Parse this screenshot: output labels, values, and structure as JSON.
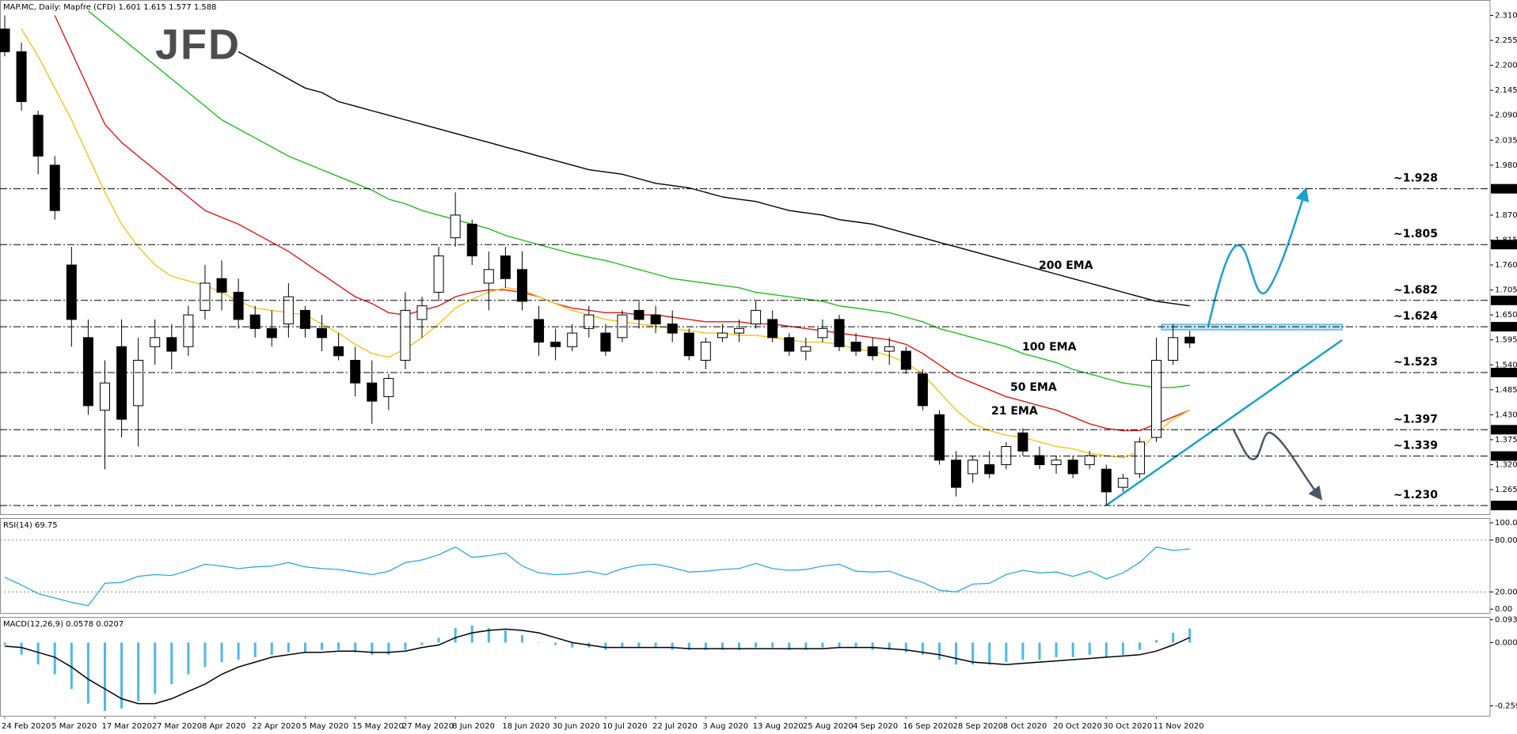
{
  "chart_data": [
    {
      "type": "candlestick",
      "title": "MAP.MC, Daily:  Mapfre (CFD)  1.601 1.615 1.577 1.588",
      "watermark": "JFD",
      "categories": [
        "24 Feb 2020",
        null,
        null,
        "5 Mar 2020",
        null,
        null,
        "17 Mar 2020",
        null,
        null,
        "27 Mar 2020",
        null,
        null,
        "8 Apr 2020",
        null,
        null,
        "22 Apr 2020",
        null,
        null,
        "5 May 2020",
        null,
        null,
        "15 May 2020",
        null,
        null,
        "27 May 2020",
        null,
        null,
        "8 Jun 2020",
        null,
        null,
        "18 Jun 2020",
        null,
        null,
        "30 Jun 2020",
        null,
        null,
        "10 Jul 2020",
        null,
        null,
        "22 Jul 2020",
        null,
        null,
        "3 Aug 2020",
        null,
        null,
        "13 Aug 2020",
        null,
        null,
        "25 Aug 2020",
        null,
        null,
        "4 Sep 2020",
        null,
        null,
        "16 Sep 2020",
        null,
        null,
        "28 Sep 2020",
        null,
        null,
        "8 Oct 2020",
        null,
        null,
        "20 Oct 2020",
        null,
        null,
        "30 Oct 2020",
        null,
        null,
        "11 Nov 2020",
        null,
        null
      ],
      "open": [
        2.28,
        2.23,
        2.09,
        1.98,
        1.76,
        1.6,
        1.44,
        1.58,
        1.45,
        1.58,
        1.6,
        1.58,
        1.66,
        1.73,
        1.7,
        1.65,
        1.62,
        1.63,
        1.66,
        1.62,
        1.58,
        1.55,
        1.5,
        1.47,
        1.55,
        1.64,
        1.7,
        1.82,
        1.85,
        1.72,
        1.78,
        1.75,
        1.64,
        1.59,
        1.58,
        1.62,
        1.61,
        1.6,
        1.66,
        1.65,
        1.63,
        1.61,
        1.55,
        1.6,
        1.61,
        1.63,
        1.64,
        1.6,
        1.57,
        1.6,
        1.64,
        1.59,
        1.58,
        1.57,
        1.57,
        1.52,
        1.43,
        1.33,
        1.3,
        1.32,
        1.32,
        1.39,
        1.34,
        1.32,
        1.33,
        1.32,
        1.31,
        1.27,
        1.3,
        1.38,
        1.55,
        1.601
      ],
      "high": [
        2.31,
        2.25,
        2.1,
        2.0,
        1.8,
        1.64,
        1.55,
        1.64,
        1.6,
        1.64,
        1.63,
        1.67,
        1.76,
        1.77,
        1.73,
        1.67,
        1.66,
        1.72,
        1.67,
        1.65,
        1.61,
        1.58,
        1.55,
        1.52,
        1.7,
        1.69,
        1.8,
        1.92,
        1.86,
        1.79,
        1.8,
        1.79,
        1.67,
        1.62,
        1.63,
        1.67,
        1.63,
        1.66,
        1.68,
        1.67,
        1.66,
        1.62,
        1.6,
        1.63,
        1.64,
        1.68,
        1.66,
        1.61,
        1.6,
        1.64,
        1.65,
        1.61,
        1.6,
        1.6,
        1.58,
        1.53,
        1.44,
        1.35,
        1.34,
        1.35,
        1.37,
        1.4,
        1.36,
        1.34,
        1.34,
        1.35,
        1.32,
        1.3,
        1.38,
        1.6,
        1.63,
        1.615
      ],
      "low": [
        2.22,
        2.1,
        1.96,
        1.86,
        1.58,
        1.43,
        1.31,
        1.38,
        1.36,
        1.54,
        1.53,
        1.56,
        1.64,
        1.66,
        1.62,
        1.6,
        1.58,
        1.6,
        1.6,
        1.57,
        1.55,
        1.47,
        1.41,
        1.44,
        1.53,
        1.6,
        1.68,
        1.8,
        1.76,
        1.66,
        1.71,
        1.66,
        1.56,
        1.55,
        1.57,
        1.6,
        1.56,
        1.59,
        1.62,
        1.61,
        1.59,
        1.55,
        1.53,
        1.59,
        1.59,
        1.62,
        1.59,
        1.56,
        1.55,
        1.59,
        1.57,
        1.56,
        1.55,
        1.54,
        1.52,
        1.44,
        1.32,
        1.25,
        1.28,
        1.29,
        1.31,
        1.34,
        1.31,
        1.3,
        1.29,
        1.31,
        1.23,
        1.26,
        1.29,
        1.37,
        1.54,
        1.577
      ],
      "close": [
        2.23,
        2.12,
        2.0,
        1.88,
        1.64,
        1.45,
        1.5,
        1.42,
        1.55,
        1.6,
        1.57,
        1.65,
        1.72,
        1.7,
        1.64,
        1.62,
        1.6,
        1.69,
        1.62,
        1.6,
        1.56,
        1.5,
        1.46,
        1.51,
        1.66,
        1.67,
        1.78,
        1.87,
        1.78,
        1.75,
        1.73,
        1.68,
        1.59,
        1.58,
        1.61,
        1.65,
        1.57,
        1.65,
        1.64,
        1.63,
        1.61,
        1.56,
        1.59,
        1.61,
        1.62,
        1.66,
        1.6,
        1.57,
        1.58,
        1.62,
        1.58,
        1.57,
        1.56,
        1.58,
        1.53,
        1.45,
        1.33,
        1.27,
        1.33,
        1.3,
        1.36,
        1.35,
        1.32,
        1.33,
        1.3,
        1.34,
        1.26,
        1.29,
        1.37,
        1.55,
        1.6,
        1.588
      ],
      "up_color": "#ffffff",
      "down_color": "#000000",
      "lines": [
        {
          "name": "200 EMA",
          "color": "#000000",
          "values": [
            null,
            null,
            null,
            null,
            null,
            null,
            null,
            null,
            null,
            null,
            null,
            null,
            null,
            null,
            2.23,
            2.21,
            2.19,
            2.17,
            2.15,
            2.14,
            2.12,
            2.11,
            2.1,
            2.09,
            2.08,
            2.07,
            2.06,
            2.05,
            2.04,
            2.03,
            2.02,
            2.01,
            2.0,
            1.99,
            1.98,
            1.97,
            1.965,
            1.96,
            1.95,
            1.94,
            1.935,
            1.93,
            1.92,
            1.91,
            1.905,
            1.9,
            1.89,
            1.88,
            1.875,
            1.87,
            1.86,
            1.855,
            1.85,
            1.84,
            1.83,
            1.82,
            1.81,
            1.8,
            1.79,
            1.78,
            1.77,
            1.76,
            1.75,
            1.74,
            1.73,
            1.72,
            1.71,
            1.7,
            1.69,
            1.68,
            1.675,
            1.67
          ]
        },
        {
          "name": "100 EMA",
          "color": "#1fbf1f",
          "values": [
            null,
            null,
            null,
            null,
            null,
            2.32,
            2.29,
            2.26,
            2.23,
            2.2,
            2.17,
            2.14,
            2.11,
            2.08,
            2.06,
            2.04,
            2.02,
            2.0,
            1.985,
            1.97,
            1.955,
            1.94,
            1.925,
            1.905,
            1.895,
            1.88,
            1.87,
            1.86,
            1.85,
            1.84,
            1.825,
            1.815,
            1.805,
            1.795,
            1.785,
            1.777,
            1.77,
            1.76,
            1.75,
            1.74,
            1.73,
            1.725,
            1.72,
            1.715,
            1.71,
            1.7,
            1.695,
            1.69,
            1.685,
            1.68,
            1.67,
            1.665,
            1.66,
            1.655,
            1.645,
            1.635,
            1.62,
            1.61,
            1.6,
            1.59,
            1.58,
            1.565,
            1.555,
            1.545,
            1.53,
            1.52,
            1.51,
            1.5,
            1.495,
            1.49,
            1.49,
            1.495
          ]
        },
        {
          "name": "50 EMA",
          "color": "#e01b1b",
          "values": [
            null,
            null,
            null,
            2.31,
            2.23,
            2.15,
            2.07,
            2.03,
            2.0,
            1.97,
            1.94,
            1.91,
            1.88,
            1.865,
            1.85,
            1.83,
            1.81,
            1.79,
            1.765,
            1.74,
            1.715,
            1.69,
            1.675,
            1.655,
            1.65,
            1.66,
            1.67,
            1.69,
            1.7,
            1.705,
            1.705,
            1.7,
            1.69,
            1.675,
            1.665,
            1.66,
            1.655,
            1.655,
            1.65,
            1.65,
            1.645,
            1.64,
            1.635,
            1.635,
            1.635,
            1.63,
            1.63,
            1.625,
            1.62,
            1.615,
            1.61,
            1.605,
            1.6,
            1.595,
            1.585,
            1.565,
            1.54,
            1.515,
            1.5,
            1.485,
            1.47,
            1.46,
            1.45,
            1.44,
            1.425,
            1.41,
            1.4,
            1.395,
            1.395,
            1.41,
            1.425,
            1.44
          ]
        },
        {
          "name": "21 EMA",
          "color": "#f2c318",
          "values": [
            null,
            2.28,
            2.22,
            2.15,
            2.08,
            2.0,
            1.92,
            1.85,
            1.8,
            1.76,
            1.735,
            1.725,
            1.715,
            1.7,
            1.68,
            1.665,
            1.66,
            1.655,
            1.65,
            1.63,
            1.61,
            1.585,
            1.565,
            1.557,
            1.575,
            1.6,
            1.63,
            1.665,
            1.685,
            1.7,
            1.71,
            1.705,
            1.69,
            1.675,
            1.66,
            1.65,
            1.64,
            1.635,
            1.63,
            1.625,
            1.62,
            1.615,
            1.61,
            1.61,
            1.605,
            1.605,
            1.6,
            1.595,
            1.59,
            1.59,
            1.585,
            1.575,
            1.57,
            1.56,
            1.545,
            1.52,
            1.48,
            1.44,
            1.41,
            1.395,
            1.385,
            1.38,
            1.37,
            1.36,
            1.355,
            1.345,
            1.34,
            1.335,
            1.35,
            1.39,
            1.42,
            1.44
          ]
        }
      ],
      "levels": [
        {
          "value": 1.928,
          "tick_label": "1.928",
          "label": "~1.928",
          "color": "#1a9fd0"
        },
        {
          "value": 1.805,
          "tick_label": "1.805",
          "label": "~1.805",
          "color": "#1a9fd0"
        },
        {
          "value": 1.682,
          "tick_label": "1.682",
          "label": "~1.682",
          "color": "#1a9fd0"
        },
        {
          "value": 1.624,
          "tick_label": "1.624",
          "label": "~1.624",
          "color": "#1a9fd0"
        },
        {
          "value": 1.523,
          "tick_label": "1.523",
          "label": "~1.523",
          "color": "#333333"
        },
        {
          "value": 1.397,
          "tick_label": "1.397",
          "label": "~1.397",
          "color": "#333333"
        },
        {
          "value": 1.339,
          "tick_label": "1.339",
          "label": "~1.339",
          "color": "#333333"
        },
        {
          "value": 1.23,
          "tick_label": "1.230",
          "label": "~1.230",
          "color": "#333333"
        }
      ],
      "ylim": [
        1.211,
        2.344
      ],
      "yticks": [
        {
          "value": 2.31,
          "label": "2.310"
        },
        2.255,
        {
          "value": 2.2,
          "label": "2.200"
        },
        2.145,
        {
          "value": 2.09,
          "label": "2.090"
        },
        2.035,
        {
          "value": 1.98,
          "label": "1.980"
        },
        {
          "value": 1.87,
          "label": "1.870"
        },
        1.815,
        {
          "value": 1.76,
          "label": "1.760"
        },
        1.705,
        {
          "value": 1.65,
          "label": "1.650"
        },
        1.595,
        {
          "value": 1.54,
          "label": "1.540"
        },
        1.485,
        {
          "value": 1.43,
          "label": "1.430"
        },
        1.375,
        {
          "value": 1.32,
          "label": "1.320"
        },
        1.265
      ]
    },
    {
      "type": "line",
      "title": "RSI(14) 69.75",
      "color": "#2aa9dc",
      "values": [
        37,
        28,
        18,
        13,
        8,
        4,
        30,
        31,
        38,
        40,
        39,
        45,
        52,
        50,
        47,
        49,
        50,
        54,
        49,
        47,
        46,
        43,
        40,
        44,
        54,
        57,
        63,
        72,
        60,
        62,
        65,
        50,
        42,
        40,
        41,
        44,
        40,
        47,
        51,
        52,
        48,
        43,
        44,
        46,
        47,
        53,
        47,
        45,
        46,
        50,
        52,
        44,
        43,
        44,
        37,
        31,
        22,
        20,
        29,
        30,
        40,
        45,
        42,
        43,
        38,
        44,
        35,
        42,
        54,
        72,
        68,
        69.75
      ],
      "levels": [
        80,
        20
      ],
      "ylim": [
        -4.4,
        105.5
      ],
      "yticks": [
        {
          "value": 100,
          "label": "100.00"
        },
        {
          "value": 80,
          "label": "80.00"
        },
        {
          "value": 20,
          "label": "20.00"
        },
        {
          "value": 0,
          "label": "0.00"
        }
      ]
    },
    {
      "type": "macd",
      "title": "MACD(12,26,9) 0.0578 0.0207",
      "color": "#4db8e8",
      "values": [
        -0.01,
        -0.05,
        -0.09,
        -0.13,
        -0.19,
        -0.25,
        -0.28,
        -0.27,
        -0.24,
        -0.21,
        -0.17,
        -0.13,
        -0.1,
        -0.08,
        -0.07,
        -0.06,
        -0.05,
        -0.04,
        -0.04,
        -0.03,
        -0.03,
        -0.04,
        -0.05,
        -0.05,
        -0.03,
        -0.01,
        0.02,
        0.06,
        0.07,
        0.06,
        0.05,
        0.03,
        0.0,
        -0.01,
        -0.02,
        -0.02,
        -0.03,
        -0.02,
        -0.02,
        -0.02,
        -0.03,
        -0.03,
        -0.03,
        -0.03,
        -0.03,
        -0.02,
        -0.02,
        -0.03,
        -0.03,
        -0.02,
        -0.02,
        -0.02,
        -0.03,
        -0.03,
        -0.04,
        -0.05,
        -0.07,
        -0.09,
        -0.09,
        -0.09,
        -0.08,
        -0.07,
        -0.07,
        -0.06,
        -0.06,
        -0.05,
        -0.06,
        -0.05,
        -0.03,
        0.01,
        0.04,
        0.0578
      ],
      "signal_color": "#000000",
      "signal": [
        -0.015,
        -0.02,
        -0.04,
        -0.06,
        -0.1,
        -0.15,
        -0.19,
        -0.23,
        -0.25,
        -0.25,
        -0.23,
        -0.2,
        -0.17,
        -0.13,
        -0.1,
        -0.08,
        -0.06,
        -0.05,
        -0.04,
        -0.04,
        -0.035,
        -0.035,
        -0.04,
        -0.04,
        -0.035,
        -0.02,
        -0.01,
        0.02,
        0.04,
        0.05,
        0.055,
        0.05,
        0.04,
        0.02,
        0.0,
        -0.01,
        -0.02,
        -0.02,
        -0.02,
        -0.02,
        -0.02,
        -0.025,
        -0.025,
        -0.025,
        -0.025,
        -0.025,
        -0.025,
        -0.025,
        -0.025,
        -0.025,
        -0.02,
        -0.02,
        -0.02,
        -0.025,
        -0.03,
        -0.04,
        -0.05,
        -0.065,
        -0.08,
        -0.085,
        -0.09,
        -0.085,
        -0.08,
        -0.075,
        -0.07,
        -0.065,
        -0.06,
        -0.055,
        -0.05,
        -0.035,
        -0.01,
        0.0207
      ],
      "ylim": [
        -0.3,
        0.105
      ],
      "yticks": [
        0.0933,
        {
          "value": 0,
          "label": "0.0000"
        },
        -0.2591
      ]
    }
  ]
}
